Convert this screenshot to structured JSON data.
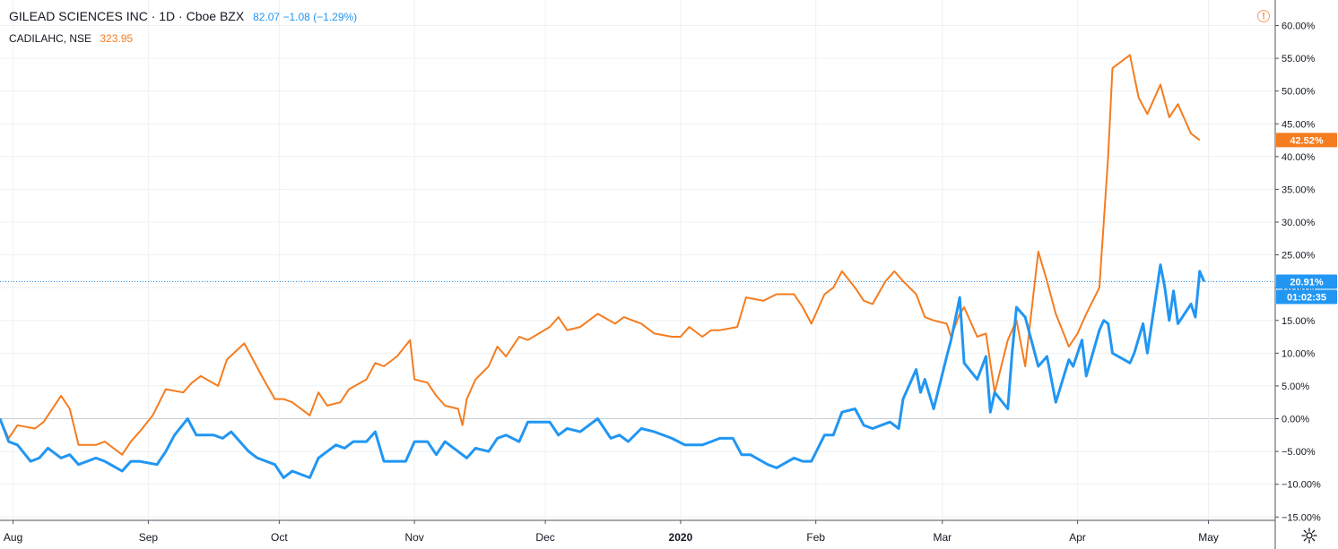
{
  "legend": {
    "main_title": "GILEAD SCIENCES INC · 1D · Cboe BZX",
    "main_values": "82.07  −1.08 (−1.29%)",
    "secondary_title": "CADILAHC, NSE",
    "secondary_value": "323.95"
  },
  "icons": {
    "warning": "warning-icon",
    "settings": "gear-icon"
  },
  "colors": {
    "blue": "#2196f3",
    "orange": "#f57c1f",
    "grid": "#eef0f3",
    "axis_text": "#131722"
  },
  "chart_data": {
    "type": "line",
    "title": "GILEAD SCIENCES INC · 1D · Cboe BZX",
    "x_labels": [
      "Aug",
      "Sep",
      "Oct",
      "Nov",
      "Dec",
      "2020",
      "Feb",
      "Mar",
      "Apr",
      "May"
    ],
    "y_tick_labels": [
      "60.00%",
      "55.00%",
      "50.00%",
      "45.00%",
      "40.00%",
      "35.00%",
      "30.00%",
      "25.00%",
      "20.00%",
      "15.00%",
      "10.00%",
      "5.00%",
      "0.00%",
      "−5.00%",
      "−10.00%",
      "−15.00%"
    ],
    "y_ticks": [
      60,
      55,
      50,
      45,
      40,
      35,
      30,
      25,
      20,
      15,
      10,
      5,
      0,
      -5,
      -10,
      -15
    ],
    "ylim": [
      -15.5,
      62
    ],
    "x_range": [
      "2019-07-29",
      "2020-05-05"
    ],
    "grid": true,
    "last_value_labels": [
      {
        "series": "CADILAHC, NSE",
        "text": "42.52%",
        "value": 42.52
      },
      {
        "series": "GILEAD SCIENCES INC",
        "text": "20.91%",
        "value": 20.91
      },
      {
        "series": "GILEAD SCIENCES INC",
        "text": "01:02:35",
        "value": 20.91
      }
    ],
    "series": [
      {
        "name": "CADILAHC, NSE",
        "color": "#f57c1f",
        "points": [
          [
            "2019-07-29",
            0.0
          ],
          [
            "2019-07-31",
            -3.0
          ],
          [
            "2019-08-02",
            -1.0
          ],
          [
            "2019-08-06",
            -1.5
          ],
          [
            "2019-08-08",
            -0.5
          ],
          [
            "2019-08-12",
            3.5
          ],
          [
            "2019-08-14",
            1.5
          ],
          [
            "2019-08-16",
            -4.0
          ],
          [
            "2019-08-20",
            -4.0
          ],
          [
            "2019-08-22",
            -3.5
          ],
          [
            "2019-08-26",
            -5.5
          ],
          [
            "2019-08-28",
            -3.5
          ],
          [
            "2019-08-30",
            -2.0
          ],
          [
            "2019-09-02",
            0.5
          ],
          [
            "2019-09-05",
            4.5
          ],
          [
            "2019-09-09",
            4.0
          ],
          [
            "2019-09-11",
            5.5
          ],
          [
            "2019-09-13",
            6.5
          ],
          [
            "2019-09-17",
            5.0
          ],
          [
            "2019-09-19",
            9.0
          ],
          [
            "2019-09-23",
            11.5
          ],
          [
            "2019-09-25",
            9.0
          ],
          [
            "2019-09-27",
            6.5
          ],
          [
            "2019-09-30",
            3.0
          ],
          [
            "2019-10-02",
            3.0
          ],
          [
            "2019-10-04",
            2.5
          ],
          [
            "2019-10-08",
            0.5
          ],
          [
            "2019-10-10",
            4.0
          ],
          [
            "2019-10-12",
            2.0
          ],
          [
            "2019-10-15",
            2.5
          ],
          [
            "2019-10-17",
            4.5
          ],
          [
            "2019-10-21",
            6.0
          ],
          [
            "2019-10-23",
            8.5
          ],
          [
            "2019-10-25",
            8.0
          ],
          [
            "2019-10-28",
            9.5
          ],
          [
            "2019-10-31",
            12.0
          ],
          [
            "2019-11-01",
            6.0
          ],
          [
            "2019-11-04",
            5.5
          ],
          [
            "2019-11-06",
            3.5
          ],
          [
            "2019-11-08",
            2.0
          ],
          [
            "2019-11-11",
            1.5
          ],
          [
            "2019-11-12",
            -1.0
          ],
          [
            "2019-11-13",
            3.0
          ],
          [
            "2019-11-15",
            6.0
          ],
          [
            "2019-11-18",
            8.0
          ],
          [
            "2019-11-20",
            11.0
          ],
          [
            "2019-11-22",
            9.5
          ],
          [
            "2019-11-25",
            12.5
          ],
          [
            "2019-11-27",
            12.0
          ],
          [
            "2019-12-02",
            14.0
          ],
          [
            "2019-12-04",
            15.5
          ],
          [
            "2019-12-06",
            13.5
          ],
          [
            "2019-12-09",
            14.0
          ],
          [
            "2019-12-11",
            15.0
          ],
          [
            "2019-12-13",
            16.0
          ],
          [
            "2019-12-17",
            14.5
          ],
          [
            "2019-12-19",
            15.5
          ],
          [
            "2019-12-23",
            14.5
          ],
          [
            "2019-12-26",
            13.0
          ],
          [
            "2019-12-30",
            12.5
          ],
          [
            "2020-01-01",
            12.5
          ],
          [
            "2020-01-03",
            14.0
          ],
          [
            "2020-01-06",
            12.5
          ],
          [
            "2020-01-08",
            13.5
          ],
          [
            "2020-01-10",
            13.5
          ],
          [
            "2020-01-14",
            14.0
          ],
          [
            "2020-01-16",
            18.5
          ],
          [
            "2020-01-20",
            18.0
          ],
          [
            "2020-01-23",
            19.0
          ],
          [
            "2020-01-27",
            19.0
          ],
          [
            "2020-01-29",
            17.0
          ],
          [
            "2020-01-31",
            14.5
          ],
          [
            "2020-02-03",
            19.0
          ],
          [
            "2020-02-05",
            20.0
          ],
          [
            "2020-02-07",
            22.5
          ],
          [
            "2020-02-10",
            20.0
          ],
          [
            "2020-02-12",
            18.0
          ],
          [
            "2020-02-14",
            17.5
          ],
          [
            "2020-02-17",
            21.0
          ],
          [
            "2020-02-19",
            22.5
          ],
          [
            "2020-02-21",
            21.0
          ],
          [
            "2020-02-24",
            19.0
          ],
          [
            "2020-02-26",
            15.5
          ],
          [
            "2020-02-28",
            15.0
          ],
          [
            "2020-03-02",
            14.5
          ],
          [
            "2020-03-03",
            12.5
          ],
          [
            "2020-03-05",
            16.0
          ],
          [
            "2020-03-06",
            17.0
          ],
          [
            "2020-03-09",
            12.5
          ],
          [
            "2020-03-11",
            13.0
          ],
          [
            "2020-03-13",
            4.0
          ],
          [
            "2020-03-16",
            12.0
          ],
          [
            "2020-03-18",
            15.0
          ],
          [
            "2020-03-20",
            8.0
          ],
          [
            "2020-03-23",
            25.5
          ],
          [
            "2020-03-25",
            21.0
          ],
          [
            "2020-03-27",
            16.0
          ],
          [
            "2020-03-30",
            11.0
          ],
          [
            "2020-04-01",
            13.0
          ],
          [
            "2020-04-03",
            16.0
          ],
          [
            "2020-04-06",
            20.0
          ],
          [
            "2020-04-08",
            40.0
          ],
          [
            "2020-04-09",
            53.5
          ],
          [
            "2020-04-13",
            55.5
          ],
          [
            "2020-04-15",
            49.0
          ],
          [
            "2020-04-17",
            46.5
          ],
          [
            "2020-04-20",
            51.0
          ],
          [
            "2020-04-22",
            46.0
          ],
          [
            "2020-04-24",
            48.0
          ],
          [
            "2020-04-27",
            43.5
          ],
          [
            "2020-04-29",
            42.52
          ]
        ]
      },
      {
        "name": "GILEAD SCIENCES INC",
        "color": "#2196f3",
        "points": [
          [
            "2019-07-29",
            0.0
          ],
          [
            "2019-07-31",
            -3.5
          ],
          [
            "2019-08-02",
            -4.0
          ],
          [
            "2019-08-05",
            -6.5
          ],
          [
            "2019-08-07",
            -6.0
          ],
          [
            "2019-08-09",
            -4.5
          ],
          [
            "2019-08-12",
            -6.0
          ],
          [
            "2019-08-14",
            -5.5
          ],
          [
            "2019-08-16",
            -7.0
          ],
          [
            "2019-08-20",
            -6.0
          ],
          [
            "2019-08-22",
            -6.5
          ],
          [
            "2019-08-26",
            -8.0
          ],
          [
            "2019-08-28",
            -6.5
          ],
          [
            "2019-08-30",
            -6.5
          ],
          [
            "2019-09-03",
            -7.0
          ],
          [
            "2019-09-05",
            -5.0
          ],
          [
            "2019-09-07",
            -2.5
          ],
          [
            "2019-09-10",
            0.0
          ],
          [
            "2019-09-12",
            -2.5
          ],
          [
            "2019-09-16",
            -2.5
          ],
          [
            "2019-09-18",
            -3.0
          ],
          [
            "2019-09-20",
            -2.0
          ],
          [
            "2019-09-24",
            -5.0
          ],
          [
            "2019-09-26",
            -6.0
          ],
          [
            "2019-09-30",
            -7.0
          ],
          [
            "2019-10-02",
            -9.0
          ],
          [
            "2019-10-04",
            -8.0
          ],
          [
            "2019-10-08",
            -9.0
          ],
          [
            "2019-10-10",
            -6.0
          ],
          [
            "2019-10-14",
            -4.0
          ],
          [
            "2019-10-16",
            -4.5
          ],
          [
            "2019-10-18",
            -3.5
          ],
          [
            "2019-10-21",
            -3.5
          ],
          [
            "2019-10-23",
            -2.0
          ],
          [
            "2019-10-25",
            -6.5
          ],
          [
            "2019-10-28",
            -6.5
          ],
          [
            "2019-10-30",
            -6.5
          ],
          [
            "2019-11-01",
            -3.5
          ],
          [
            "2019-11-04",
            -3.5
          ],
          [
            "2019-11-06",
            -5.5
          ],
          [
            "2019-11-08",
            -3.5
          ],
          [
            "2019-11-11",
            -5.0
          ],
          [
            "2019-11-13",
            -6.0
          ],
          [
            "2019-11-15",
            -4.5
          ],
          [
            "2019-11-18",
            -5.0
          ],
          [
            "2019-11-20",
            -3.0
          ],
          [
            "2019-11-22",
            -2.5
          ],
          [
            "2019-11-25",
            -3.5
          ],
          [
            "2019-11-27",
            -0.5
          ],
          [
            "2019-12-02",
            -0.5
          ],
          [
            "2019-12-04",
            -2.5
          ],
          [
            "2019-12-06",
            -1.5
          ],
          [
            "2019-12-09",
            -2.0
          ],
          [
            "2019-12-11",
            -1.0
          ],
          [
            "2019-12-13",
            0.0
          ],
          [
            "2019-12-16",
            -3.0
          ],
          [
            "2019-12-18",
            -2.5
          ],
          [
            "2019-12-20",
            -3.5
          ],
          [
            "2019-12-23",
            -1.5
          ],
          [
            "2019-12-26",
            -2.0
          ],
          [
            "2019-12-30",
            -3.0
          ],
          [
            "2020-01-02",
            -4.0
          ],
          [
            "2020-01-06",
            -4.0
          ],
          [
            "2020-01-08",
            -3.5
          ],
          [
            "2020-01-10",
            -3.0
          ],
          [
            "2020-01-13",
            -3.0
          ],
          [
            "2020-01-15",
            -5.5
          ],
          [
            "2020-01-17",
            -5.5
          ],
          [
            "2020-01-21",
            -7.0
          ],
          [
            "2020-01-23",
            -7.5
          ],
          [
            "2020-01-27",
            -6.0
          ],
          [
            "2020-01-29",
            -6.5
          ],
          [
            "2020-01-31",
            -6.5
          ],
          [
            "2020-02-03",
            -2.5
          ],
          [
            "2020-02-05",
            -2.5
          ],
          [
            "2020-02-07",
            1.0
          ],
          [
            "2020-02-10",
            1.5
          ],
          [
            "2020-02-12",
            -1.0
          ],
          [
            "2020-02-14",
            -1.5
          ],
          [
            "2020-02-18",
            -0.5
          ],
          [
            "2020-02-20",
            -1.5
          ],
          [
            "2020-02-21",
            3.0
          ],
          [
            "2020-02-24",
            7.5
          ],
          [
            "2020-02-25",
            4.0
          ],
          [
            "2020-02-26",
            6.0
          ],
          [
            "2020-02-28",
            1.5
          ],
          [
            "2020-03-02",
            9.5
          ],
          [
            "2020-03-03",
            12.0
          ],
          [
            "2020-03-05",
            18.5
          ],
          [
            "2020-03-06",
            8.5
          ],
          [
            "2020-03-09",
            6.0
          ],
          [
            "2020-03-11",
            9.5
          ],
          [
            "2020-03-12",
            1.0
          ],
          [
            "2020-03-13",
            4.0
          ],
          [
            "2020-03-16",
            1.5
          ],
          [
            "2020-03-17",
            10.0
          ],
          [
            "2020-03-18",
            17.0
          ],
          [
            "2020-03-20",
            15.5
          ],
          [
            "2020-03-23",
            8.0
          ],
          [
            "2020-03-25",
            9.5
          ],
          [
            "2020-03-27",
            2.5
          ],
          [
            "2020-03-30",
            9.0
          ],
          [
            "2020-03-31",
            8.0
          ],
          [
            "2020-04-02",
            12.0
          ],
          [
            "2020-04-03",
            6.5
          ],
          [
            "2020-04-06",
            13.5
          ],
          [
            "2020-04-07",
            15.0
          ],
          [
            "2020-04-08",
            14.5
          ],
          [
            "2020-04-09",
            10.0
          ],
          [
            "2020-04-13",
            8.5
          ],
          [
            "2020-04-14",
            10.0
          ],
          [
            "2020-04-16",
            14.5
          ],
          [
            "2020-04-17",
            10.0
          ],
          [
            "2020-04-20",
            23.5
          ],
          [
            "2020-04-21",
            20.0
          ],
          [
            "2020-04-22",
            15.0
          ],
          [
            "2020-04-23",
            19.5
          ],
          [
            "2020-04-24",
            14.5
          ],
          [
            "2020-04-27",
            17.5
          ],
          [
            "2020-04-28",
            15.5
          ],
          [
            "2020-04-29",
            22.5
          ],
          [
            "2020-04-30",
            20.91
          ]
        ]
      }
    ]
  }
}
